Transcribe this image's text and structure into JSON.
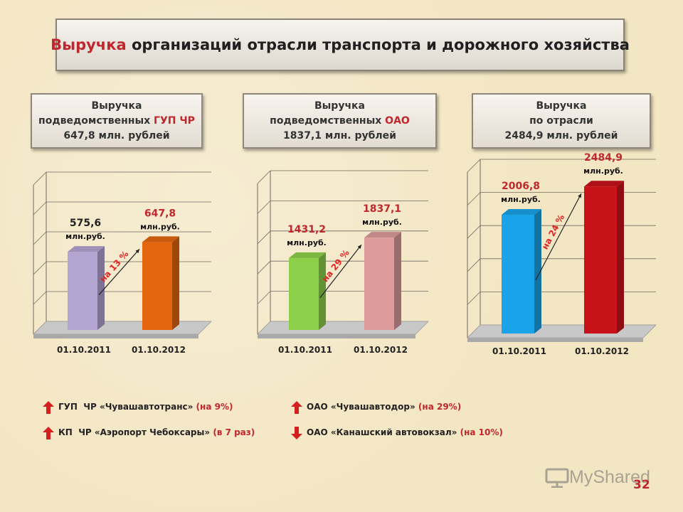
{
  "title": {
    "highlight": "Выручка",
    "rest": " организаций отрасли транспорта и дорожного хозяйства"
  },
  "panels": [
    {
      "line1": "Выручка",
      "line2a": "подведомственных ",
      "line2b": "ГУП ЧР",
      "line3": "647,8 млн. рублей"
    },
    {
      "line1": "Выручка",
      "line2a": "подведомственных ",
      "line2b": "ОАО",
      "line3": "1837,1 млн. рублей"
    },
    {
      "line1": "Выручка",
      "line2a": "по отрасли",
      "line2b": "",
      "line3": "2484,9 млн. рублей"
    }
  ],
  "chart_data": [
    {
      "type": "bar",
      "categories": [
        "01.10.2011",
        "01.10.2012"
      ],
      "values": [
        575.6,
        647.8
      ],
      "value_labels": [
        "575,6",
        "647,8"
      ],
      "unit_label": "млн.руб.",
      "growth_label": "на 13 %",
      "colors": [
        "#b4a4d1",
        "#e3660f"
      ],
      "label_colors": [
        "#222222",
        "#c0272d"
      ],
      "ylim": [
        0,
        1100
      ]
    },
    {
      "type": "bar",
      "categories": [
        "01.10.2011",
        "01.10.2012"
      ],
      "values": [
        1431.2,
        1837.1
      ],
      "value_labels": [
        "1431,2",
        "1837,1"
      ],
      "unit_label": "млн.руб.",
      "growth_label": "на 29 %",
      "colors": [
        "#8ed04a",
        "#dc9a9b"
      ],
      "label_colors": [
        "#c0272d",
        "#c0272d"
      ],
      "ylim": [
        0,
        3000
      ]
    },
    {
      "type": "bar",
      "categories": [
        "01.10.2011",
        "01.10.2012"
      ],
      "values": [
        2006.8,
        2484.9
      ],
      "value_labels": [
        "2006,8",
        "2484,9"
      ],
      "unit_label": "млн.руб.",
      "growth_label": "на 24 %",
      "colors": [
        "#1aa3e8",
        "#c8121a"
      ],
      "label_colors": [
        "#c0272d",
        "#c0272d"
      ],
      "ylim": [
        0,
        2800
      ]
    }
  ],
  "legend": [
    {
      "direction": "up",
      "text": "ГУП  ЧР «Чувашавтотранс» ",
      "change": "(на 9%)"
    },
    {
      "direction": "up",
      "text": "КП  ЧР «Аэропорт Чебоксары» ",
      "change": "(в 7 раз)"
    },
    {
      "direction": "up",
      "text": "ОАО «Чувашавтодор» ",
      "change": "(на 29%)"
    },
    {
      "direction": "down",
      "text": "ОАО «Канашский автовокзал» ",
      "change": "(на 10%)"
    }
  ],
  "watermark": "MyShared",
  "page_number": "32"
}
